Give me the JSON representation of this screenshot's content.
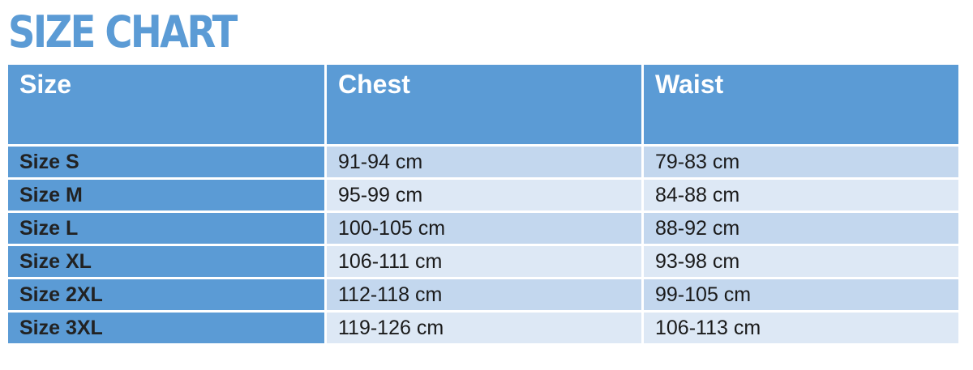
{
  "title": "SIZE CHART",
  "columns": [
    "Size",
    "Chest",
    "Waist"
  ],
  "rows": [
    [
      "Size S",
      "91-94 cm",
      "79-83 cm"
    ],
    [
      "Size M",
      "95-99 cm",
      "84-88 cm"
    ],
    [
      "Size L",
      "100-105 cm",
      "88-92 cm"
    ],
    [
      "Size XL",
      "106-111 cm",
      "93-98 cm"
    ],
    [
      "Size 2XL",
      "112-118 cm",
      "99-105 cm"
    ],
    [
      "Size 3XL",
      "119-126 cm",
      "106-113 cm"
    ]
  ],
  "colors": {
    "accent": "#5b9bd5",
    "row_dark": "#c3d7ee",
    "row_light": "#dde8f5"
  }
}
